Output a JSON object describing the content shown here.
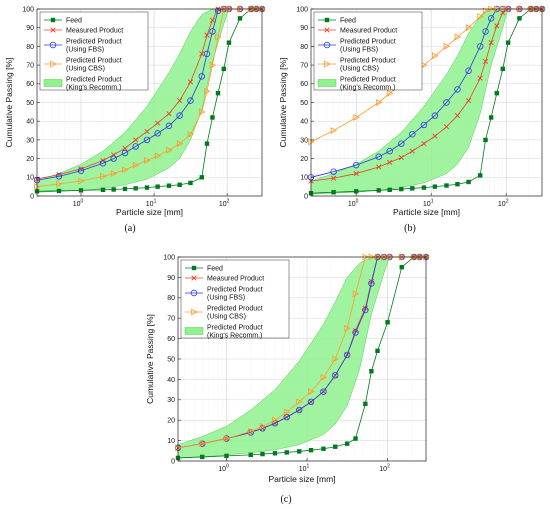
{
  "colors": {
    "feed": "#007a1f",
    "measured": "#e8412a",
    "fbs": "#2a3ae0",
    "cbs": "#ff9a2a",
    "band_fill": "#8ff28f",
    "band_edge": "#55cc55"
  },
  "chart_data": [
    {
      "panel_label": "(a)",
      "type": "line",
      "xlabel": "Particle size [mm]",
      "ylabel": "Cumulative Passing [%]",
      "xscale": "log",
      "xlim": [
        0.25,
        300
      ],
      "ylim": [
        0,
        100
      ],
      "x_ticks": [
        {
          "v": 1,
          "b": "10",
          "e": "0"
        },
        {
          "v": 10,
          "b": "10",
          "e": "1"
        },
        {
          "v": 100,
          "b": "10",
          "e": "2"
        }
      ],
      "y_ticks": [
        0,
        10,
        20,
        30,
        40,
        50,
        60,
        70,
        80,
        90,
        100
      ],
      "grid": true,
      "legend_position": "top-left",
      "legend": [
        "Feed",
        "Measured Product",
        "Predicted Product (Using FBS)",
        "Predicted Product (Using CBS)",
        "Predicted Product (King's Recomm.)"
      ],
      "series": [
        {
          "name": "Feed",
          "x": [
            0.25,
            0.5,
            1,
            2,
            2.8,
            4,
            5.6,
            8,
            11.2,
            16,
            22.4,
            31.5,
            45,
            53,
            63,
            75,
            90,
            106,
            150,
            212,
            250,
            300
          ],
          "y": [
            2.5,
            2.7,
            3,
            3.3,
            3.5,
            3.8,
            4.1,
            4.5,
            5,
            5.5,
            6,
            7,
            10,
            28,
            42,
            55,
            68,
            82,
            95,
            100,
            100,
            100
          ]
        },
        {
          "name": "Measured Product",
          "x": [
            0.25,
            0.5,
            1,
            2,
            2.8,
            4,
            5.6,
            8,
            11.2,
            16,
            22.4,
            31.5,
            45,
            53,
            63,
            75,
            90,
            106,
            150,
            212,
            250,
            300
          ],
          "y": [
            9,
            11.5,
            14.5,
            19,
            22,
            25.5,
            30,
            34.5,
            39,
            44,
            51,
            61,
            76,
            86,
            94,
            100,
            100,
            100,
            100,
            100,
            100,
            100
          ]
        },
        {
          "name": "Predicted Product (Using FBS)",
          "x": [
            0.25,
            0.5,
            1,
            2,
            2.8,
            4,
            5.6,
            8,
            11.2,
            16,
            22.4,
            31.5,
            45,
            53,
            63,
            75,
            90,
            106,
            150,
            212,
            250,
            300
          ],
          "y": [
            8.5,
            10.5,
            13.5,
            17.5,
            20,
            23,
            26.5,
            30,
            33.5,
            37.5,
            43,
            51,
            64,
            76,
            88,
            99,
            100,
            100,
            100,
            100,
            100,
            100
          ]
        },
        {
          "name": "Predicted Product (Using CBS)",
          "x": [
            0.25,
            0.5,
            1,
            2,
            2.8,
            4,
            5.6,
            8,
            11.2,
            16,
            22.4,
            31.5,
            45,
            53,
            63,
            75,
            90,
            106,
            150,
            212,
            250,
            300
          ],
          "y": [
            5,
            6.5,
            8,
            10.5,
            12,
            14,
            16.5,
            19,
            21.5,
            24.5,
            28,
            33,
            45,
            56,
            70,
            85,
            100,
            100,
            100,
            100,
            100,
            100
          ]
        }
      ],
      "band": {
        "name": "Predicted Product (King's Recomm.)",
        "x": [
          0.25,
          0.5,
          1,
          2,
          4,
          8,
          16,
          22.4,
          31.5,
          45,
          63,
          90,
          106,
          150,
          212,
          250,
          300
        ],
        "lower": [
          2,
          2.5,
          3,
          4,
          6,
          9,
          15,
          20,
          30,
          46,
          72,
          92,
          100,
          100,
          100,
          100,
          100
        ],
        "upper": [
          8,
          12,
          17,
          24,
          34,
          48,
          66,
          76,
          88,
          97,
          100,
          100,
          100,
          100,
          100,
          100,
          100
        ]
      }
    },
    {
      "panel_label": "(b)",
      "type": "line",
      "xlabel": "Particle size [mm]",
      "ylabel": "Cumulative Passing [%]",
      "xscale": "log",
      "xlim": [
        0.25,
        300
      ],
      "ylim": [
        0,
        100
      ],
      "x_ticks": [
        {
          "v": 1,
          "b": "10",
          "e": "0"
        },
        {
          "v": 10,
          "b": "10",
          "e": "1"
        },
        {
          "v": 100,
          "b": "10",
          "e": "2"
        }
      ],
      "y_ticks": [
        0,
        10,
        20,
        30,
        40,
        50,
        60,
        70,
        80,
        90,
        100
      ],
      "grid": true,
      "legend_position": "top-left",
      "legend": [
        "Feed",
        "Measured Product",
        "Predicted Product (Using FBS)",
        "Predicted Product (Using CBS)",
        "Predicted Product (King's Recomm.)"
      ],
      "series": [
        {
          "name": "Feed",
          "x": [
            0.25,
            0.5,
            1,
            2,
            2.8,
            4,
            5.6,
            8,
            11.2,
            16,
            22.4,
            31.5,
            45,
            53,
            63,
            75,
            90,
            106,
            150,
            212,
            250,
            300
          ],
          "y": [
            1.5,
            2,
            2.5,
            3,
            3.3,
            3.7,
            4.1,
            4.5,
            5,
            5.6,
            6.3,
            7.5,
            11,
            30,
            42,
            55,
            68,
            82,
            95,
            100,
            100,
            100
          ]
        },
        {
          "name": "Measured Product",
          "x": [
            0.25,
            0.5,
            1,
            2,
            2.8,
            4,
            5.6,
            8,
            11.2,
            16,
            22.4,
            31.5,
            45,
            53,
            63,
            75,
            90,
            106,
            150,
            212,
            250,
            300
          ],
          "y": [
            8,
            9.5,
            12,
            15.5,
            18,
            20.5,
            24,
            28,
            32,
            37,
            43,
            51,
            63,
            72,
            82,
            91,
            98,
            100,
            100,
            100,
            100,
            100
          ]
        },
        {
          "name": "Predicted Product (Using FBS)",
          "x": [
            0.25,
            0.5,
            1,
            2,
            2.8,
            4,
            5.6,
            8,
            11.2,
            16,
            22.4,
            31.5,
            45,
            53,
            63,
            75,
            90,
            106,
            150,
            212,
            250,
            300
          ],
          "y": [
            10,
            13,
            16.5,
            21,
            24,
            28,
            33,
            38,
            43,
            50,
            57,
            67,
            80,
            88,
            95,
            100,
            100,
            100,
            100,
            100,
            100,
            100
          ]
        },
        {
          "name": "Predicted Product (Using CBS)",
          "x": [
            0.25,
            0.5,
            1,
            2,
            2.8,
            4,
            5.6,
            8,
            11.2,
            16,
            22.4,
            31.5,
            45,
            53,
            63,
            75,
            90,
            106,
            150,
            212,
            250,
            300
          ],
          "y": [
            29,
            35,
            42,
            50,
            55,
            60,
            65,
            70,
            75,
            80,
            85,
            90,
            96,
            99,
            100,
            100,
            100,
            100,
            100,
            100,
            100,
            100
          ]
        }
      ],
      "band": {
        "name": "Predicted Product (King's Recomm.)",
        "x": [
          0.25,
          0.5,
          1,
          2,
          4,
          8,
          16,
          22.4,
          31.5,
          45,
          63,
          90,
          106,
          150,
          212,
          250,
          300
        ],
        "lower": [
          1,
          1.5,
          2,
          3,
          4.5,
          7,
          12,
          17,
          26,
          44,
          70,
          90,
          100,
          100,
          100,
          100,
          100
        ],
        "upper": [
          8,
          12,
          17,
          24,
          34,
          48,
          65,
          75,
          87,
          96,
          100,
          100,
          100,
          100,
          100,
          100,
          100
        ]
      }
    },
    {
      "panel_label": "(c)",
      "type": "line",
      "xlabel": "Particle size [mm]",
      "ylabel": "Cumulative Passing [%]",
      "xscale": "log",
      "xlim": [
        0.25,
        300
      ],
      "ylim": [
        0,
        100
      ],
      "x_ticks": [
        {
          "v": 1,
          "b": "10",
          "e": "0"
        },
        {
          "v": 10,
          "b": "10",
          "e": "1"
        },
        {
          "v": 100,
          "b": "10",
          "e": "2"
        }
      ],
      "y_ticks": [
        0,
        10,
        20,
        30,
        40,
        50,
        60,
        70,
        80,
        90,
        100
      ],
      "grid": true,
      "legend_position": "top-left",
      "legend": [
        "Feed",
        "Measured Product",
        "Predicted Product (Using FBS)",
        "Predicted Product (Using CBS)",
        "Predicted Product (King's Recomm.)"
      ],
      "series": [
        {
          "name": "Feed",
          "x": [
            0.25,
            0.5,
            1,
            2,
            2.8,
            4,
            5.6,
            8,
            11.2,
            16,
            22.4,
            31.5,
            40,
            53,
            63,
            75,
            100,
            150,
            212,
            250,
            300
          ],
          "y": [
            1.5,
            2,
            2.5,
            3,
            3.4,
            3.8,
            4.2,
            4.7,
            5.3,
            6,
            7,
            8.5,
            11,
            28,
            44,
            54,
            68,
            95,
            100,
            100,
            100
          ]
        },
        {
          "name": "Measured Product",
          "x": [
            0.25,
            0.5,
            1,
            2,
            2.8,
            4,
            5.6,
            8,
            11.2,
            16,
            22.4,
            31.5,
            40,
            53,
            63,
            75,
            90,
            106,
            150,
            212,
            250,
            300
          ],
          "y": [
            6.5,
            8.5,
            11,
            14,
            16,
            18.5,
            21.5,
            25,
            29,
            34,
            42,
            52,
            64,
            75,
            88,
            100,
            100,
            100,
            100,
            100,
            100,
            100
          ]
        },
        {
          "name": "Predicted Product (Using FBS)",
          "x": [
            0.25,
            0.5,
            1,
            2,
            2.8,
            4,
            5.6,
            8,
            11.2,
            16,
            22.4,
            31.5,
            40,
            53,
            63,
            75,
            90,
            106,
            150,
            212,
            250,
            300
          ],
          "y": [
            6.5,
            8.5,
            11,
            14,
            16,
            18.5,
            21.5,
            25,
            29,
            34,
            42,
            52,
            63,
            74,
            87,
            100,
            100,
            100,
            100,
            100,
            100,
            100
          ]
        },
        {
          "name": "Predicted Product (Using CBS)",
          "x": [
            0.25,
            0.5,
            1,
            2,
            2.8,
            4,
            5.6,
            8,
            11.2,
            16,
            22.4,
            31.5,
            40,
            53,
            63,
            75,
            90,
            106,
            150,
            212,
            250,
            300
          ],
          "y": [
            6.5,
            8.5,
            11,
            14.5,
            17,
            20,
            24,
            29,
            34,
            41,
            50,
            65,
            82,
            100,
            100,
            100,
            100,
            100,
            100,
            100,
            100,
            100
          ]
        }
      ],
      "band": {
        "name": "Predicted Product (King's Recomm.)",
        "x": [
          0.25,
          0.5,
          1,
          2,
          4,
          8,
          16,
          22.4,
          31.5,
          45,
          63,
          90,
          106,
          150,
          212,
          250,
          300
        ],
        "lower": [
          1.5,
          2,
          3,
          4,
          5.5,
          8,
          13,
          18,
          27,
          45,
          72,
          92,
          100,
          100,
          100,
          100,
          100
        ],
        "upper": [
          8,
          12,
          17,
          25,
          35,
          49,
          67,
          78,
          90,
          97,
          100,
          100,
          100,
          100,
          100,
          100,
          100
        ]
      }
    }
  ]
}
